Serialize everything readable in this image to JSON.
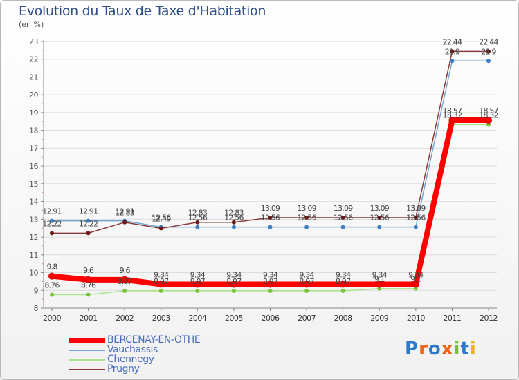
{
  "header": {
    "title": "Evolution du Taux de Taxe d'Habitation",
    "unit": "(en %)"
  },
  "brand": {
    "logo_text": "Proxiti"
  },
  "chart_data": {
    "type": "line",
    "title": "Evolution du Taux de Taxe d'Habitation",
    "ylabel": "(en %)",
    "xlabel": "",
    "ylim": [
      8,
      23
    ],
    "yticks": [
      8,
      9,
      10,
      11,
      12,
      13,
      14,
      15,
      16,
      17,
      18,
      19,
      20,
      21,
      22,
      23
    ],
    "categories": [
      "2000",
      "2001",
      "2002",
      "2003",
      "2004",
      "2005",
      "2006",
      "2007",
      "2008",
      "2009",
      "2010",
      "2011",
      "2012"
    ],
    "series": [
      {
        "name": "BERCENAY-EN-OTHE",
        "color": "#ff0000",
        "marker": "#ff0000",
        "bold": true,
        "values": [
          9.8,
          9.6,
          9.6,
          9.34,
          9.34,
          9.34,
          9.34,
          9.34,
          9.34,
          9.34,
          9.34,
          18.57,
          18.57
        ],
        "labels": [
          "9.8",
          "9.6",
          "9.6",
          "9.34",
          "9.34",
          "9.34",
          "9.34",
          "9.34",
          "9.34",
          "9.34",
          "9.34",
          "18.57",
          "18.57"
        ]
      },
      {
        "name": "Vauchassis",
        "color": "#6fa6d6",
        "marker": "#3e7fbf",
        "bold": false,
        "values": [
          12.91,
          12.91,
          12.91,
          12.56,
          12.56,
          12.56,
          12.56,
          12.56,
          12.56,
          12.56,
          12.56,
          21.9,
          21.9
        ],
        "labels": [
          "12.91",
          "12.91",
          "12.91",
          "12.56",
          "12.56",
          "12.56",
          "12.56",
          "12.56",
          "12.56",
          "12.56",
          "12.56",
          "21.9",
          "21.9"
        ]
      },
      {
        "name": "Chennegy",
        "color": "#a9e38a",
        "marker": "#7cc23c",
        "bold": false,
        "values": [
          8.76,
          8.76,
          8.97,
          8.97,
          8.97,
          8.97,
          8.97,
          8.97,
          8.97,
          9.1,
          9.1,
          18.32,
          18.32
        ],
        "labels": [
          "8.76",
          "8.76",
          "8.97",
          "8.97",
          "8.97",
          "8.97",
          "8.97",
          "8.97",
          "8.97",
          "9.1",
          "9.1",
          "18.32",
          "18.32"
        ]
      },
      {
        "name": "Prugny",
        "color": "#8b3a3a",
        "marker": "#6b1a1a",
        "bold": false,
        "values": [
          12.22,
          12.22,
          12.83,
          12.49,
          12.83,
          12.83,
          13.09,
          13.09,
          13.09,
          13.09,
          13.09,
          22.44,
          22.44
        ],
        "labels": [
          "12.22",
          "12.22",
          "12.83",
          "12.49",
          "12.83",
          "12.83",
          "13.09",
          "13.09",
          "13.09",
          "13.09",
          "13.09",
          "22.44",
          "22.44"
        ]
      }
    ],
    "legend_position": "bottom-left",
    "grid": "horizontal"
  }
}
